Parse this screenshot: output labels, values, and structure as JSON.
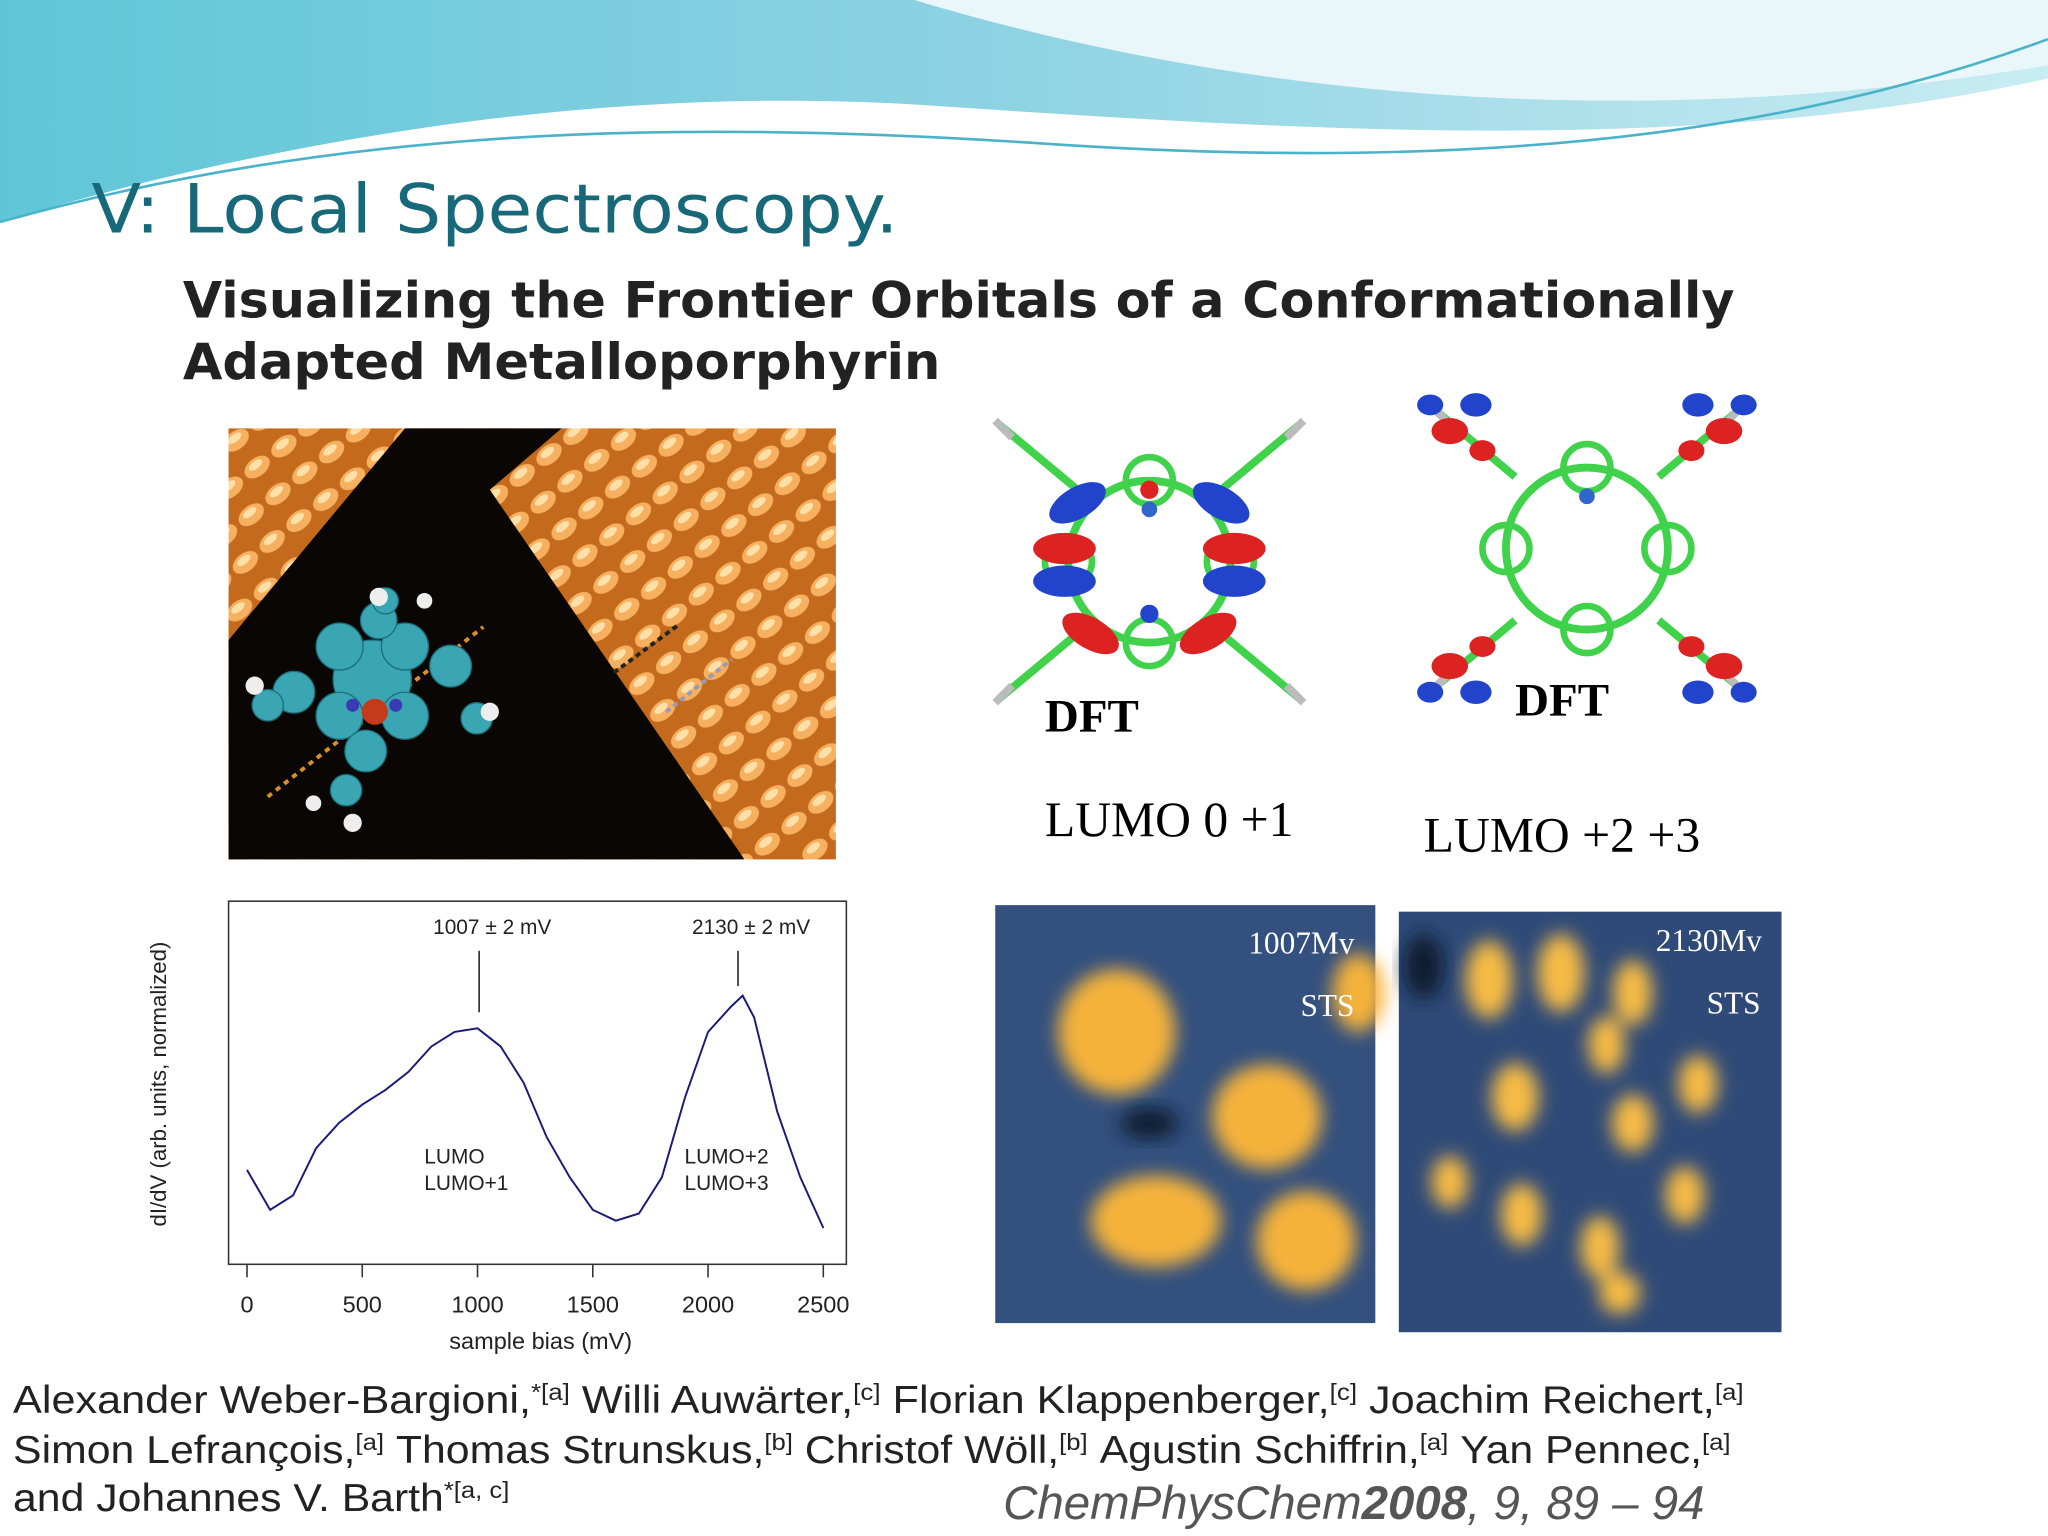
{
  "slide_title": "V: Local Spectroscopy.",
  "paper_title": [
    "Visualizing the Frontier Orbitals of a Conformationally",
    "Adapted Metalloporphyrin"
  ],
  "dft_panels": [
    {
      "method": "DFT",
      "orbitals": "LUMO 0 +1"
    },
    {
      "method": "DFT",
      "orbitals": "LUMO +2 +3"
    }
  ],
  "sts_panels": [
    {
      "bias": "1007Mv",
      "mode": "STS"
    },
    {
      "bias": "2130Mv",
      "mode": "STS"
    }
  ],
  "chart_data": {
    "type": "line",
    "x_label": "sample bias (mV)",
    "y_label": "dI/dV (arb. units, normalized)",
    "color": "#1a1a7a",
    "x": [
      0,
      100,
      200,
      300,
      400,
      500,
      600,
      700,
      800,
      900,
      1000,
      1100,
      1200,
      1300,
      1400,
      1500,
      1600,
      1700,
      1800,
      1900,
      2000,
      2100,
      2150,
      2200,
      2300,
      2400,
      2450,
      2500
    ],
    "values": [
      0.26,
      0.15,
      0.19,
      0.32,
      0.39,
      0.44,
      0.48,
      0.53,
      0.6,
      0.64,
      0.65,
      0.6,
      0.5,
      0.35,
      0.24,
      0.15,
      0.12,
      0.14,
      0.24,
      0.46,
      0.64,
      0.71,
      0.74,
      0.68,
      0.42,
      0.24,
      0.17,
      0.1
    ],
    "xlim": [
      -80,
      2600
    ],
    "xticks": [
      0,
      500,
      1000,
      1500,
      2000,
      2500
    ],
    "ylim": [
      0,
      1
    ],
    "annotations": [
      {
        "x": 1007,
        "text": "1007 ± 2 mV",
        "labels": [
          "LUMO",
          "LUMO+1"
        ]
      },
      {
        "x": 2130,
        "text": "2130 ± 2 mV",
        "labels": [
          "LUMO+2",
          "LUMO+3"
        ]
      }
    ]
  },
  "authors": [
    [
      {
        "name": "Alexander Weber-Bargioni,",
        "aff": "*[a]"
      },
      {
        "name": "Willi Auwärter,",
        "aff": "[c]"
      },
      {
        "name": "Florian Klappenberger,",
        "aff": "[c]"
      },
      {
        "name": "Joachim Reichert,",
        "aff": "[a]"
      }
    ],
    [
      {
        "name": "Simon Lefrançois,",
        "aff": "[a]"
      },
      {
        "name": "Thomas Strunskus,",
        "aff": "[b]"
      },
      {
        "name": "Christof Wöll,",
        "aff": "[b]"
      },
      {
        "name": "Agustin Schiffrin,",
        "aff": "[a]"
      },
      {
        "name": "Yan Pennec,",
        "aff": "[a]"
      }
    ],
    [
      {
        "name": "and Johannes V. Barth",
        "aff": "*[a, c]"
      }
    ]
  ],
  "citation": {
    "journal": "ChemPhysChem",
    "year": "2008",
    "rest": ", 9, 89 – 94"
  }
}
